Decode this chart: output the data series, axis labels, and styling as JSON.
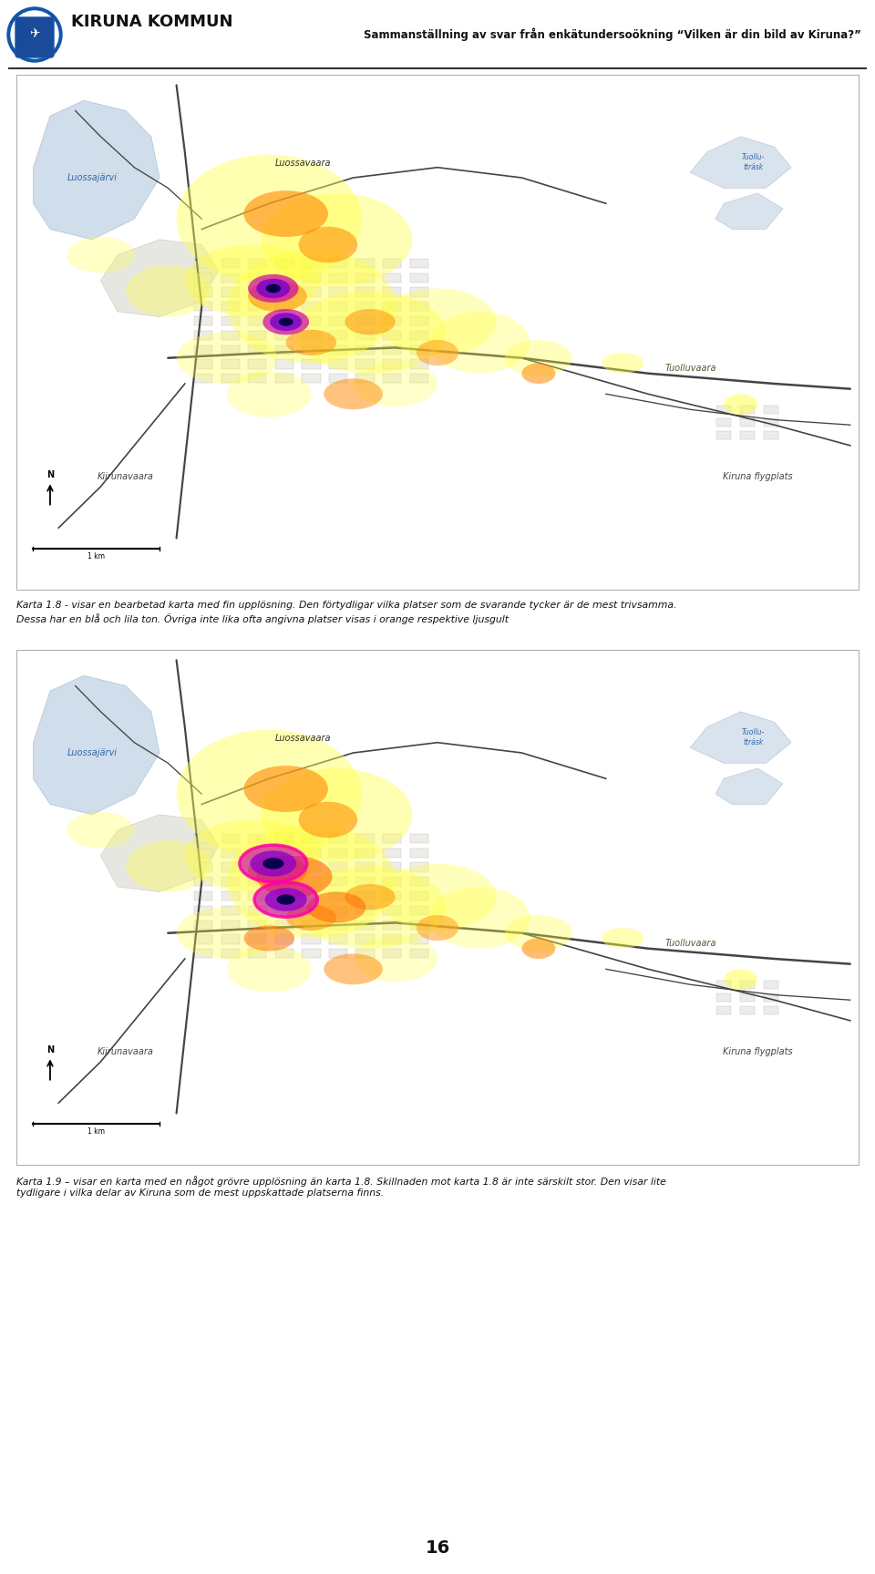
{
  "page_bg": "#ffffff",
  "header_title": "KIRUNA KOMMUN",
  "header_subtitle": "Sammanställning av svar från enkätundersoökning “Vilken är din bild av Kiruna?”",
  "map1_caption1": "Karta 1.8 - visar en bearbetad karta med fin upplösning. Den förtydligar vilka platser som de svarande tycker är de mest trivsamma.",
  "map1_caption2": "Dessa har en blå och lila ton. Övriga inte lika ofta angivna platser visas i orange respektive ljusgult",
  "map2_caption1": "Karta 1.9 – visar en karta med en något grövre upplösning än karta 1.8. Skillnaden mot karta 1.8 är inte särskilt stor. Den visar lite",
  "map2_caption2": "tydligare i vilka delar av Kiruna som de mest uppskattade platserna finns.",
  "page_number": "16",
  "map_bg": "#ffffff",
  "water_color": "#c5d8e8",
  "road_color": "#555555",
  "block_color": "#e8e8e8",
  "block_edge": "#999999"
}
